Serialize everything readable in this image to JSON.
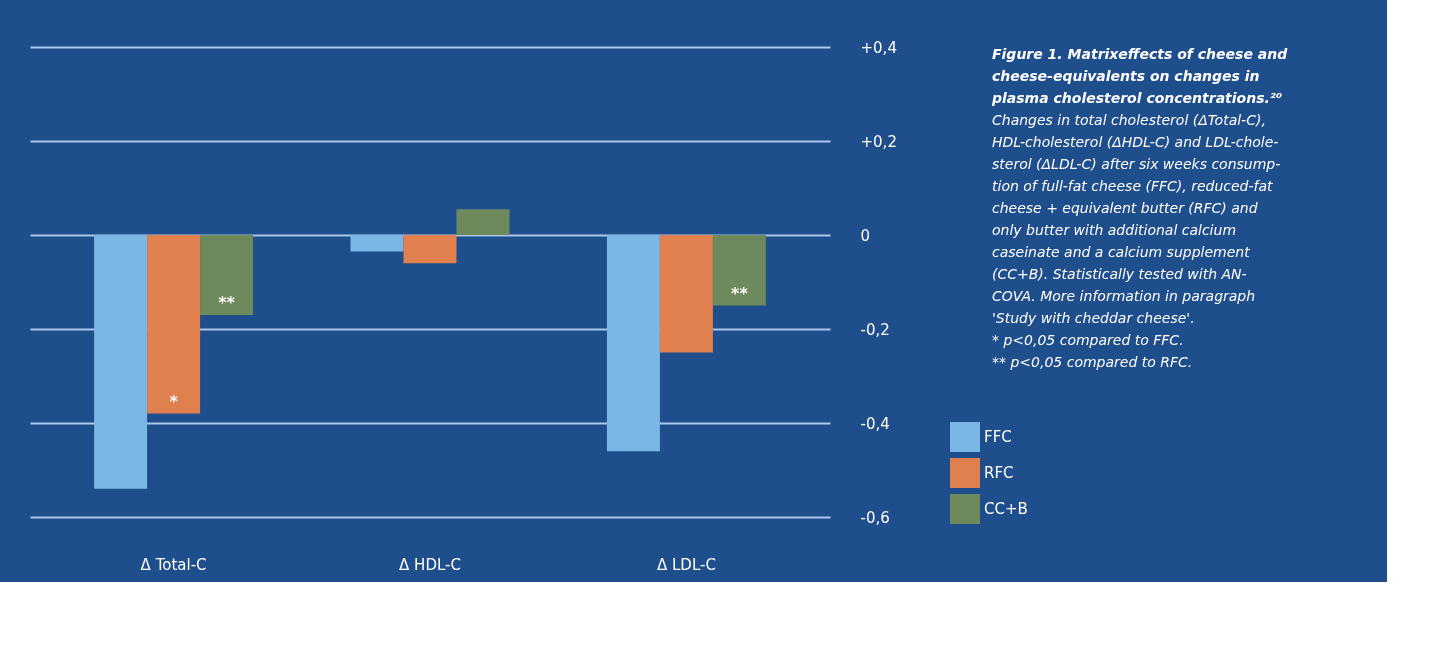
{
  "chart_data": {
    "type": "bar",
    "title": "Figure 1. Matrixeffects of cheese and\ncheese-equivalents on changes in\nplasma cholesterol concentrations.²⁰",
    "subtitle": "Changes in total cholesterol (ΔTotal-C),\nHDL-cholesterol (ΔHDL-C) and LDL-chole-\nsterol (ΔLDL-C) after six weeks consump-\ntion of full-fat cheese (FFC), reduced-fat\ncheese + equivalent butter (RFC) and\nonly butter with additional calcium\ncaseinate and a calcium supplement\n(CC+B). Statistically tested with AN-\nCOVA. More information in paragraph\n'Study with cheddar cheese'.",
    "annotations": [
      "* p<0,05 compared to FFC.",
      "** p<0,05 compared to RFC."
    ],
    "categories": [
      "Δ Total-C",
      "Δ HDL-C",
      "Δ LDL-C"
    ],
    "series": [
      {
        "name": "FFC",
        "color": "#7ab7e6",
        "values": [
          -0.54,
          -0.035,
          -0.46
        ]
      },
      {
        "name": "RFC",
        "color": "#e0804f",
        "values": [
          -0.38,
          -0.06,
          -0.25
        ],
        "value_labels": [
          "*",
          null,
          null
        ]
      },
      {
        "name": "CC+B",
        "color": "#6e8a5c",
        "values": [
          -0.17,
          0.055,
          -0.15
        ],
        "value_labels": [
          "**",
          null,
          "**"
        ]
      }
    ],
    "ylim": [
      -0.6,
      0.4
    ],
    "yticks": [
      {
        "value": 0.4,
        "label": "+0,4"
      },
      {
        "value": 0.2,
        "label": "+0,2"
      },
      0,
      {
        "value": -0.2,
        "label": "-0,2"
      },
      {
        "value": -0.4,
        "label": "-0,4"
      },
      {
        "value": -0.6,
        "label": "-0,6"
      }
    ],
    "grid": "y",
    "legend": "bottom right"
  }
}
